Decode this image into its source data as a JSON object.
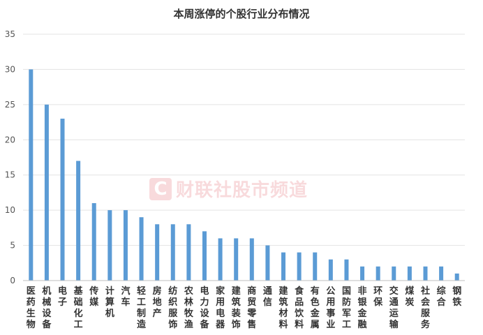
{
  "watermark": {
    "letter": "C",
    "text": "财联社股市频道"
  },
  "chart_data": {
    "type": "bar",
    "title": "本周涨停的个股行业分布情况",
    "xlabel": "",
    "ylabel": "",
    "ylim": [
      0,
      35
    ],
    "yticks": [
      0,
      5,
      10,
      15,
      20,
      25,
      30,
      35
    ],
    "grid": true,
    "legend": "none",
    "bar_color": "#5b9bd5",
    "categories": [
      "医药生物",
      "机械设备",
      "电子",
      "基础化工",
      "传媒",
      "计算机",
      "汽车",
      "轻工制造",
      "房地产",
      "纺织服饰",
      "农林牧渔",
      "电力设备",
      "家用电器",
      "建筑装饰",
      "商贸零售",
      "通信",
      "建筑材料",
      "食品饮料",
      "有色金属",
      "公用事业",
      "国防军工",
      "非银金融",
      "环保",
      "交通运输",
      "煤炭",
      "社会服务",
      "综合",
      "钢铁"
    ],
    "values": [
      30,
      25,
      23,
      17,
      11,
      10,
      10,
      9,
      8,
      8,
      8,
      7,
      6,
      6,
      6,
      5,
      4,
      4,
      4,
      3,
      3,
      2,
      2,
      2,
      2,
      2,
      2,
      1
    ]
  }
}
